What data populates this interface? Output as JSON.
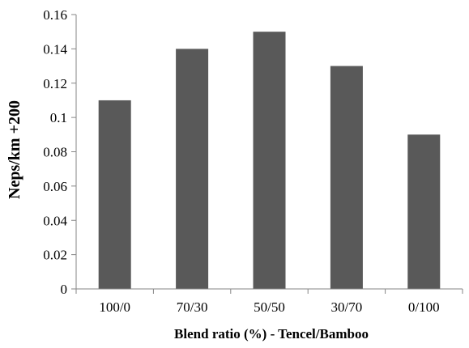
{
  "chart_data": {
    "type": "bar",
    "categories": [
      "100/0",
      "70/30",
      "50/50",
      "30/70",
      "0/100"
    ],
    "values": [
      0.11,
      0.14,
      0.15,
      0.13,
      0.09
    ],
    "y_ticks": [
      "0",
      "0.02",
      "0.04",
      "0.06",
      "0.08",
      "0.1",
      "0.12",
      "0.14",
      "0.16"
    ],
    "xlabel": "Blend ratio (%) - Tencel/Bamboo",
    "ylabel": "Neps/km +200",
    "ylim": [
      0,
      0.16
    ],
    "grid": false,
    "legend": "none",
    "bar_color": "#595959",
    "axis_color": "#868686"
  }
}
